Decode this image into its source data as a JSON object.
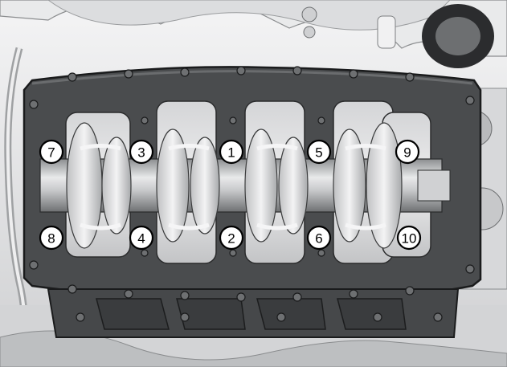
{
  "figure": {
    "type": "engine-lower-crankcase-bolt-tightening-sequence",
    "colors": {
      "background": "#ffffff",
      "bedplate": "#4a4c4e",
      "bedplate_edge": "#1a1b1c",
      "crank_metal": "#d9dadb",
      "bearing_shell": "#f1f1f1",
      "engine_block": "#e6e7e8",
      "callout_fill": "#ffffff",
      "callout_stroke": "#000000"
    },
    "callouts": [
      {
        "id": "bolt-1",
        "label": "1"
      },
      {
        "id": "bolt-2",
        "label": "2"
      },
      {
        "id": "bolt-3",
        "label": "3"
      },
      {
        "id": "bolt-4",
        "label": "4"
      },
      {
        "id": "bolt-5",
        "label": "5"
      },
      {
        "id": "bolt-6",
        "label": "6"
      },
      {
        "id": "bolt-7",
        "label": "7"
      },
      {
        "id": "bolt-8",
        "label": "8"
      },
      {
        "id": "bolt-9",
        "label": "9"
      },
      {
        "id": "bolt-10",
        "label": "10"
      }
    ]
  }
}
